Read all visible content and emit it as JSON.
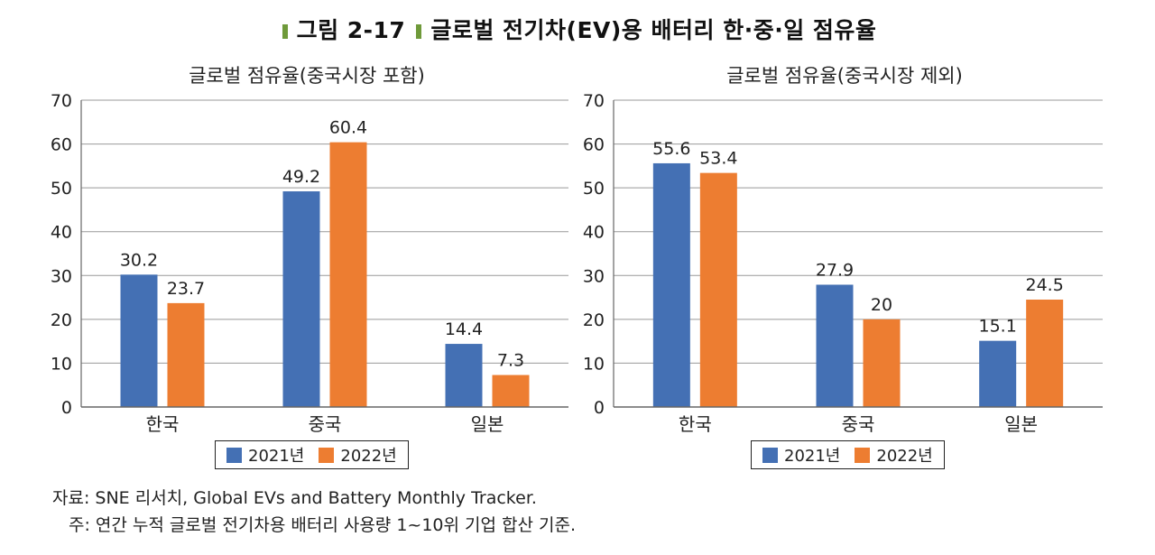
{
  "figure": {
    "number": "그림 2-17",
    "title": "글로벌 전기차(EV)용 배터리 한·중·일 점유율"
  },
  "colors": {
    "series1": "#4470b4",
    "series2": "#ed7d31",
    "grid": "#999999",
    "accent": "#6f9a3a"
  },
  "legend": [
    "2021년",
    "2022년"
  ],
  "chart_data": [
    {
      "type": "bar",
      "title": "글로벌 점유율(중국시장 포함)",
      "categories": [
        "한국",
        "중국",
        "일본"
      ],
      "series": [
        {
          "name": "2021년",
          "values": [
            30.2,
            49.2,
            14.4
          ],
          "labels": [
            "30.2",
            "49.2",
            "14.4"
          ]
        },
        {
          "name": "2022년",
          "values": [
            23.7,
            60.4,
            7.3
          ],
          "labels": [
            "23.7",
            "60.4",
            "7.3"
          ]
        }
      ],
      "ylim": [
        0,
        70
      ],
      "yticks": [
        "0",
        "10",
        "20",
        "30",
        "40",
        "50",
        "60",
        "70"
      ],
      "xlabel": "",
      "ylabel": "",
      "grid": true,
      "legend_position": "bottom"
    },
    {
      "type": "bar",
      "title": "글로벌 점유율(중국시장 제외)",
      "categories": [
        "한국",
        "중국",
        "일본"
      ],
      "series": [
        {
          "name": "2021년",
          "values": [
            55.6,
            27.9,
            15.1
          ],
          "labels": [
            "55.6",
            "27.9",
            "15.1"
          ]
        },
        {
          "name": "2022년",
          "values": [
            53.4,
            20,
            24.5
          ],
          "labels": [
            "53.4",
            "20",
            "24.5"
          ]
        }
      ],
      "ylim": [
        0,
        70
      ],
      "yticks": [
        "0",
        "10",
        "20",
        "30",
        "40",
        "50",
        "60",
        "70"
      ],
      "xlabel": "",
      "ylabel": "",
      "grid": true,
      "legend_position": "bottom"
    }
  ],
  "notes": {
    "source": "자료: SNE 리서치, Global EVs and Battery Monthly Tracker.",
    "note": "주: 연간 누적 글로벌 전기차용 배터리 사용량 1~10위 기업 합산 기준."
  }
}
